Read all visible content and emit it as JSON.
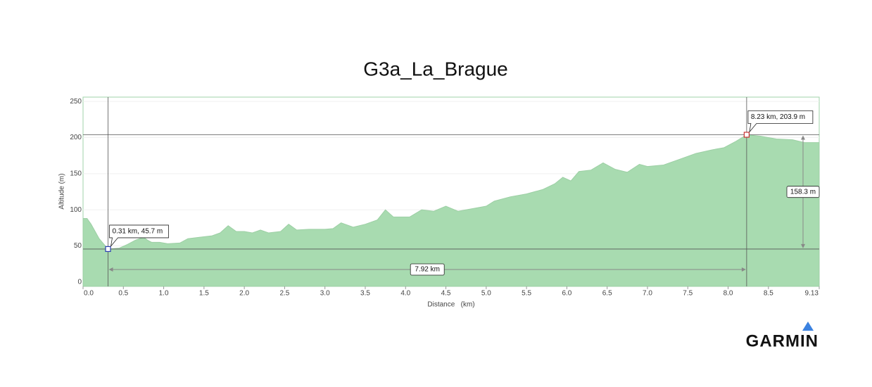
{
  "chart_data": {
    "type": "area",
    "title": "G3a_La_Brague",
    "x_label": "Distance   (km)",
    "y_label": "Altitude (m)",
    "x": [
      0,
      0.05,
      0.1,
      0.2,
      0.31,
      0.45,
      0.55,
      0.65,
      0.75,
      0.8,
      0.85,
      0.95,
      1.05,
      1.2,
      1.3,
      1.45,
      1.6,
      1.7,
      1.8,
      1.9,
      2.0,
      2.1,
      2.2,
      2.3,
      2.45,
      2.55,
      2.65,
      2.8,
      3.0,
      3.1,
      3.2,
      3.35,
      3.5,
      3.65,
      3.75,
      3.85,
      4.05,
      4.2,
      4.35,
      4.5,
      4.65,
      4.85,
      5.0,
      5.1,
      5.3,
      5.5,
      5.7,
      5.85,
      5.95,
      6.05,
      6.15,
      6.3,
      6.45,
      6.6,
      6.75,
      6.9,
      7.0,
      7.2,
      7.4,
      7.6,
      7.8,
      7.95,
      8.1,
      8.23,
      8.4,
      8.6,
      8.8,
      8.95,
      9.13
    ],
    "series": [
      {
        "color": "#a8dbb0",
        "values": [
          88,
          88,
          80,
          60,
          45.7,
          47,
          52,
          58,
          62,
          58,
          55,
          55,
          53,
          54,
          60,
          62,
          64,
          68,
          78,
          70,
          70,
          68,
          72,
          68,
          70,
          80,
          72,
          73,
          73,
          74,
          82,
          76,
          80,
          86,
          100,
          90,
          90,
          100,
          98,
          105,
          98,
          102,
          105,
          112,
          118,
          122,
          128,
          136,
          145,
          140,
          153,
          155,
          165,
          156,
          152,
          163,
          160,
          162,
          170,
          178,
          183,
          186,
          195,
          203.9,
          202,
          198,
          197,
          193,
          193
        ]
      }
    ],
    "xlim": [
      0,
      9.13
    ],
    "ylim": [
      -6,
      256
    ],
    "xticks": [
      {
        "value": 0,
        "label": "0.0"
      },
      0.5,
      {
        "value": 1,
        "label": "1.0"
      },
      1.5,
      {
        "value": 2,
        "label": "2.0"
      },
      2.5,
      {
        "value": 3,
        "label": "3.0"
      },
      3.5,
      {
        "value": 4,
        "label": "4.0"
      },
      4.5,
      {
        "value": 5,
        "label": "5.0"
      },
      5.5,
      {
        "value": 6,
        "label": "6.0"
      },
      6.5,
      {
        "value": 7,
        "label": "7.0"
      },
      7.5,
      {
        "value": 8,
        "label": "8.0"
      },
      8.5,
      9.13
    ],
    "yticks": [
      0,
      50,
      100,
      150,
      200,
      250
    ],
    "grid": true,
    "annotations": [
      {
        "text": "0.31 km, 45.7 m",
        "x": 0.31,
        "y": 45.7,
        "color": "#2a3fb0"
      },
      {
        "text": "8.23 km, 203.9 m",
        "x": 8.23,
        "y": 203.9,
        "color": "#c83232"
      }
    ],
    "measurements": {
      "distance": "7.92 km",
      "climb": "158.3 m"
    }
  },
  "brand": "GARMIN"
}
